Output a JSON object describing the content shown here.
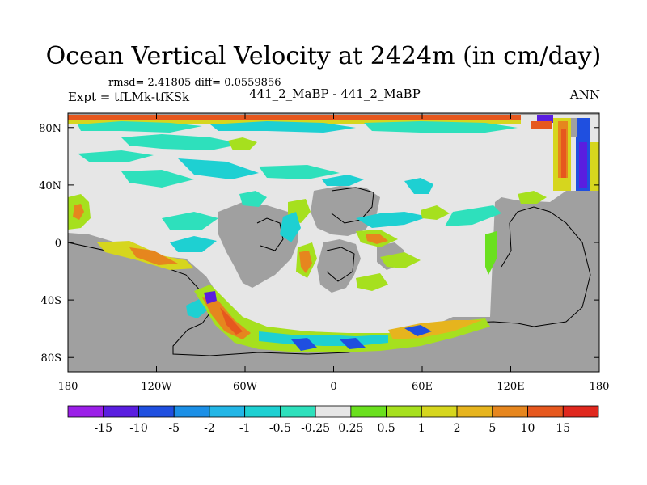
{
  "chart_data": {
    "type": "heatmap",
    "title": "Ocean Vertical Velocity at 2424m (in cm/day)",
    "stats_line": "rmsd= 2.41805 diff= 0.0559856",
    "experiment_label": "Expt = tfLMk-tfKSk",
    "comparison_label": "441_2_MaBP - 441_2_MaBP",
    "season_label": "ANN",
    "x_axis": {
      "range": [
        -180,
        180
      ],
      "ticks": [
        {
          "value": -180,
          "label": "180"
        },
        {
          "value": -120,
          "label": "120W"
        },
        {
          "value": -60,
          "label": "60W"
        },
        {
          "value": 0,
          "label": "0"
        },
        {
          "value": 60,
          "label": "60E"
        },
        {
          "value": 120,
          "label": "120E"
        },
        {
          "value": 180,
          "label": "180"
        }
      ]
    },
    "y_axis": {
      "range": [
        -90,
        90
      ],
      "ticks": [
        {
          "value": 80,
          "label": "80N"
        },
        {
          "value": 40,
          "label": "40N"
        },
        {
          "value": 0,
          "label": "0"
        },
        {
          "value": -40,
          "label": "40S"
        },
        {
          "value": -80,
          "label": "80S"
        }
      ]
    },
    "colorbar": {
      "labels": [
        "-15",
        "-10",
        "-5",
        "-2",
        "-1",
        "-0.5",
        "-0.25",
        "0.25",
        "0.5",
        "1",
        "2",
        "5",
        "10",
        "15"
      ],
      "colors": [
        "#9b1fe8",
        "#5a1ee0",
        "#1f4fe0",
        "#1b8fe6",
        "#23b6e6",
        "#1ed0d2",
        "#2ee0bc",
        "#e6e6e6",
        "#6ae01e",
        "#a6e01e",
        "#d6d61e",
        "#e6b41e",
        "#e6861e",
        "#e6581e",
        "#e0281e"
      ]
    },
    "land_color": "#a0a0a0",
    "ocean_neutral_color": "#e6e6e6"
  }
}
